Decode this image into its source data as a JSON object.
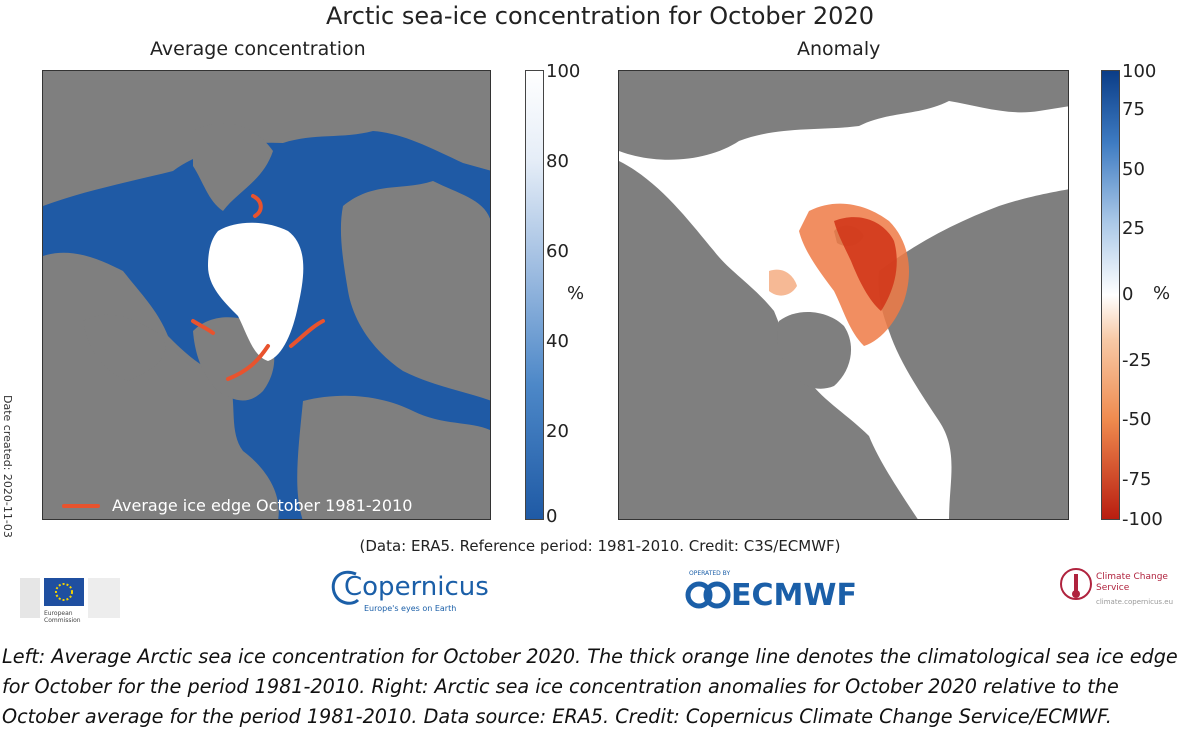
{
  "title": "Arctic sea-ice concentration for October 2020",
  "panels": {
    "left": {
      "title": "Average concentration",
      "colorbar_ticks": [
        "100",
        "80",
        "60",
        "40",
        "20",
        "0"
      ],
      "unit": "%",
      "legend": "Average ice edge October 1981-2010",
      "date_created": "Date created: 2020-11-03",
      "colors": {
        "ocean": "#1f5aa5",
        "land": "#7f7f7f",
        "ice": "#ffffff",
        "ice_edge": "#e8532e"
      }
    },
    "right": {
      "title": "Anomaly",
      "colorbar_ticks": [
        "100",
        "75",
        "50",
        "25",
        "0",
        "-25",
        "-50",
        "-75",
        "-100"
      ],
      "unit": "%",
      "colors": {
        "background": "#ffffff",
        "land": "#7f7f7f",
        "negative": "#d1371b",
        "positive": "#0b3d87"
      }
    }
  },
  "credit_line": "(Data: ERA5.  Reference period: 1981-2010.  Credit: C3S/ECMWF)",
  "logos": {
    "eu": {
      "text": "European Commission"
    },
    "copernicus": {
      "name": "Copernicus",
      "tagline": "Europe's eyes on Earth"
    },
    "ecmwf": {
      "name": "ECMWF",
      "tagline": "OPERATED BY"
    },
    "c3s": {
      "name": "Climate Change Service",
      "url": "climate.copernicus.eu"
    }
  },
  "caption": "Left: Average Arctic sea ice concentration for October 2020. The thick orange line denotes the climatological sea ice edge for October for the period 1981-2010. Right: Arctic sea ice concentration anomalies for October 2020 relative to the October average for the period 1981-2010. Data source: ERA5. Credit: Copernicus Climate Change Service/ECMWF."
}
